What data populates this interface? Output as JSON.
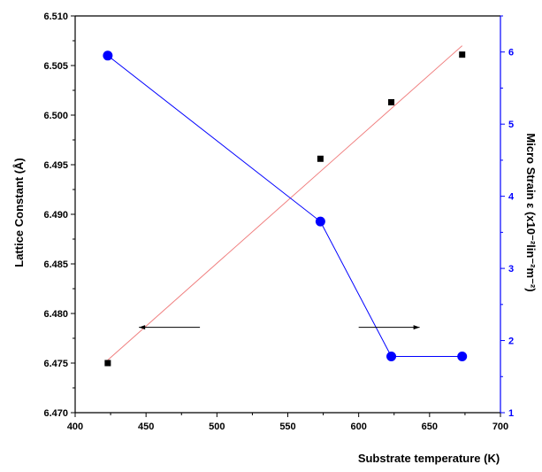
{
  "chart_data": {
    "type": "scatter",
    "xlabel": "Substrate temperature (K)",
    "ylabel_left": "Lattice Constant (Å)",
    "ylabel_right": "Micro Strain ε (x10⁻²lin⁻²m⁻²)",
    "xlim": [
      400,
      700
    ],
    "ylim_left": [
      6.47,
      6.51
    ],
    "ylim_right": [
      1,
      6.5
    ],
    "x_ticks": [
      400,
      450,
      500,
      550,
      600,
      650,
      700
    ],
    "y_left_ticks": [
      "6.470",
      "6.475",
      "6.480",
      "6.485",
      "6.490",
      "6.495",
      "6.500",
      "6.505",
      "6.510"
    ],
    "y_right_ticks": [
      1,
      2,
      3,
      4,
      5,
      6
    ],
    "grid": false,
    "colors": {
      "lattice": "#000000",
      "fit": "#f08080",
      "strain": "#0000ff",
      "right_axis": "#0000ff"
    },
    "series": [
      {
        "axis": "left",
        "style": "square-markers",
        "x": [
          423,
          573,
          623,
          673
        ],
        "values": [
          6.475,
          6.4956,
          6.5013,
          6.5061
        ]
      },
      {
        "axis": "left",
        "style": "linear-fit-line",
        "x": [
          423,
          673
        ],
        "values": [
          6.4753,
          6.507
        ]
      },
      {
        "axis": "right",
        "style": "line-with-circle-markers",
        "x": [
          423,
          573,
          623,
          673
        ],
        "values": [
          5.95,
          3.65,
          1.78,
          1.78
        ]
      }
    ],
    "annotations": [
      {
        "type": "arrow-left",
        "x_from": 488,
        "x_to": 445,
        "y": 6.4786
      },
      {
        "type": "arrow-right",
        "x_from": 600,
        "x_to": 643,
        "y": 6.4786
      }
    ]
  }
}
